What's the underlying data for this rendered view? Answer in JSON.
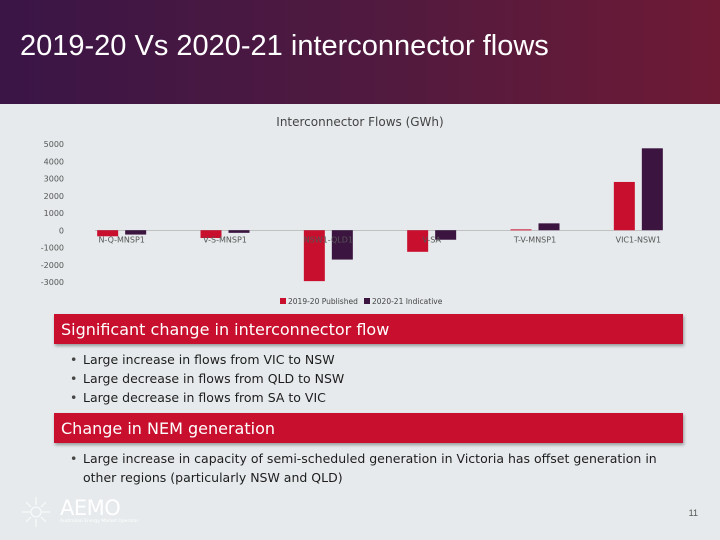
{
  "slide": {
    "title": "2019-20 Vs 2020-21 interconnector flows",
    "page_number": "11"
  },
  "chart_data": {
    "type": "bar",
    "title": "Interconnector Flows (GWh)",
    "categories": [
      "N-Q-MNSP1",
      "V-S-MNSP1",
      "NSW1-QLD1",
      "V-SA",
      "T-V-MNSP1",
      "VIC1-NSW1"
    ],
    "series": [
      {
        "name": "2019-20 Published",
        "color": "#c8102e",
        "values": [
          -350,
          -450,
          -2950,
          -1250,
          50,
          2800
        ]
      },
      {
        "name": "2020-21 Indicative",
        "color": "#3b1440",
        "values": [
          -250,
          -150,
          -1700,
          -550,
          400,
          4750
        ]
      }
    ],
    "yticks": [
      5000,
      4000,
      3000,
      2000,
      1000,
      0,
      -1000,
      -2000,
      -3000
    ],
    "ylim": [
      -3000,
      5000
    ],
    "legend_position": "bottom",
    "grid": false
  },
  "sections": [
    {
      "heading": "Significant change in interconnector flow",
      "bullets": [
        "Large increase in flows from VIC to NSW",
        "Large decrease in flows from QLD to NSW",
        "Large decrease in flows from SA to VIC"
      ]
    },
    {
      "heading": "Change in NEM generation",
      "bullets": [
        "Large increase in capacity of semi-scheduled generation in Victoria has offset generation in other regions (particularly NSW and QLD)"
      ]
    }
  ],
  "logo": {
    "text": "AEMO",
    "tagline": "Australian Energy Market Operator"
  },
  "colors": {
    "header_start": "#3a1546",
    "header_end": "#6e1a35",
    "box_red": "#c8102e",
    "background": "#e6eaec"
  }
}
